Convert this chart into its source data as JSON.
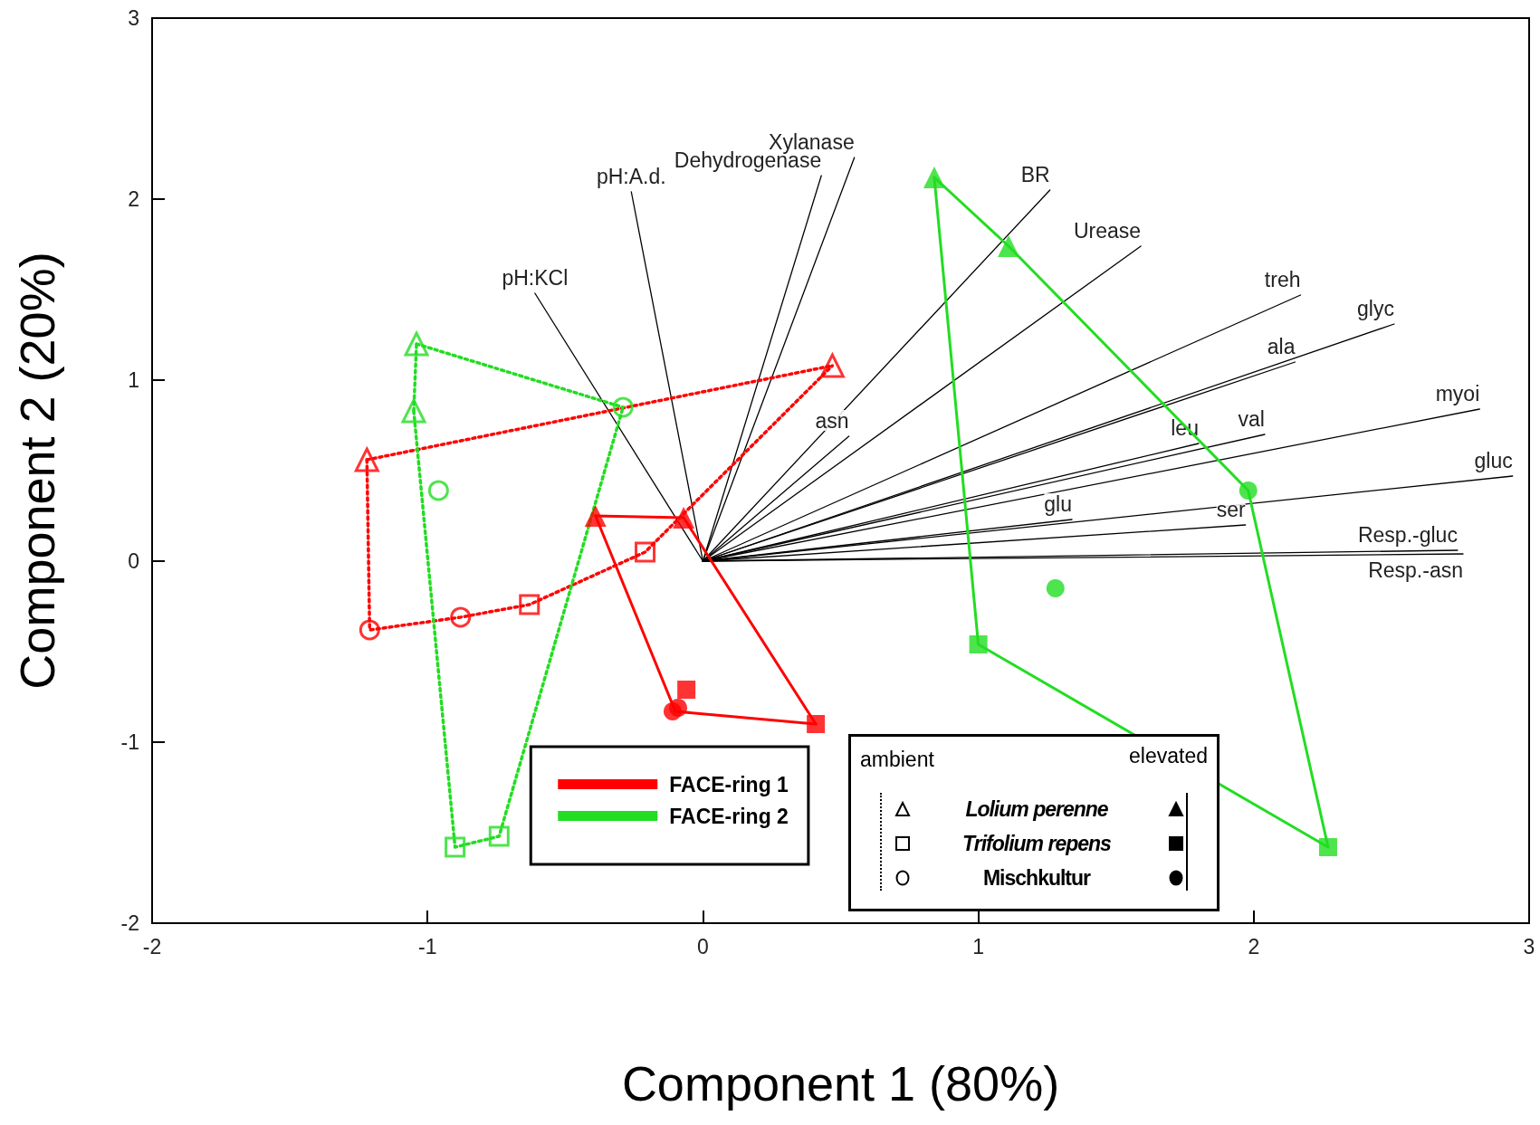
{
  "chart_data": {
    "type": "scatter",
    "xlabel": "Component 1 (80%)",
    "ylabel": "Component 2 (20%)",
    "xlim": [
      -2,
      3
    ],
    "ylim": [
      -2,
      3
    ],
    "xticks": [
      -2,
      -1,
      0,
      1,
      2,
      3
    ],
    "yticks": [
      -2,
      -1,
      0,
      1,
      2,
      3
    ],
    "grid": false,
    "legend": "bottom",
    "annotations": [
      "ambient",
      "elevated",
      "Lolium perenne",
      "Trifolium repens",
      "Mischkultur"
    ],
    "series": [
      {
        "type": "line",
        "name": "pH:A.d.",
        "color": "#000000",
        "x": [
          0,
          -0.26
        ],
        "values": [
          0,
          2.04
        ]
      },
      {
        "type": "line",
        "name": "pH:KCl",
        "color": "#000000",
        "x": [
          0,
          -0.61
        ],
        "values": [
          0,
          1.48
        ]
      },
      {
        "type": "line",
        "name": "Dehydrogenase",
        "color": "#000000",
        "x": [
          0,
          0.43
        ],
        "values": [
          0,
          2.13
        ]
      },
      {
        "type": "line",
        "name": "Xylanase",
        "color": "#000000",
        "x": [
          0,
          0.55
        ],
        "values": [
          0,
          2.23
        ]
      },
      {
        "type": "line",
        "name": "BR",
        "color": "#000000",
        "x": [
          0,
          1.26
        ],
        "values": [
          0,
          2.05
        ]
      },
      {
        "type": "line",
        "name": "Urease",
        "color": "#000000",
        "x": [
          0,
          1.59
        ],
        "values": [
          0,
          1.74
        ]
      },
      {
        "type": "line",
        "name": "treh",
        "color": "#000000",
        "x": [
          0,
          2.17
        ],
        "values": [
          0,
          1.47
        ]
      },
      {
        "type": "line",
        "name": "glyc",
        "color": "#000000",
        "x": [
          0,
          2.51
        ],
        "values": [
          0,
          1.31
        ]
      },
      {
        "type": "line",
        "name": "ala",
        "color": "#000000",
        "x": [
          0,
          2.15
        ],
        "values": [
          0,
          1.1
        ]
      },
      {
        "type": "line",
        "name": "myoi",
        "color": "#000000",
        "x": [
          0,
          2.82
        ],
        "values": [
          0,
          0.84
        ]
      },
      {
        "type": "line",
        "name": "val",
        "color": "#000000",
        "x": [
          0,
          2.04
        ],
        "values": [
          0,
          0.7
        ]
      },
      {
        "type": "line",
        "name": "leu",
        "color": "#000000",
        "x": [
          0,
          1.8
        ],
        "values": [
          0,
          0.65
        ]
      },
      {
        "type": "line",
        "name": "asn",
        "color": "#000000",
        "x": [
          0,
          0.53
        ],
        "values": [
          0,
          0.69
        ]
      },
      {
        "type": "line",
        "name": "gluc",
        "color": "#000000",
        "x": [
          0,
          2.94
        ],
        "values": [
          0,
          0.47
        ]
      },
      {
        "type": "line",
        "name": "glu",
        "color": "#000000",
        "x": [
          0,
          1.34
        ],
        "values": [
          0,
          0.23
        ]
      },
      {
        "type": "line",
        "name": "ser",
        "color": "#000000",
        "x": [
          0,
          1.97
        ],
        "values": [
          0,
          0.2
        ]
      },
      {
        "type": "line",
        "name": "Resp.-gluc",
        "color": "#000000",
        "x": [
          0,
          2.74
        ],
        "values": [
          0,
          0.06
        ]
      },
      {
        "type": "line",
        "name": "Resp.-asn",
        "color": "#000000",
        "x": [
          0,
          2.76
        ],
        "values": [
          0,
          0.04
        ]
      },
      {
        "type": "line",
        "color": "#ff0000",
        "line_style": "dotted",
        "x": [
          -1.22,
          0.47
        ],
        "values": [
          0.56,
          1.08
        ]
      },
      {
        "type": "line",
        "color": "#ff0000",
        "line_style": "dotted",
        "x": [
          -1.22,
          -1.21,
          -0.88,
          -0.63,
          -0.21,
          0.47
        ],
        "values": [
          0.56,
          -0.38,
          -0.31,
          -0.24,
          0.05,
          1.08
        ]
      },
      {
        "type": "line",
        "name": "FACE-ring 1",
        "color": "#ff0000",
        "line_style": "solid",
        "x": [
          -0.39,
          -0.07,
          0.41
        ],
        "values": [
          0.25,
          0.24,
          -0.9
        ]
      },
      {
        "type": "line",
        "color": "#ff0000",
        "line_style": "solid",
        "x": [
          -0.39,
          -0.1,
          0.41
        ],
        "values": [
          0.25,
          -0.83,
          -0.9
        ]
      },
      {
        "type": "line",
        "color": "#22dd22",
        "line_style": "dotted",
        "x": [
          -1.04,
          -0.29
        ],
        "values": [
          1.2,
          0.85
        ]
      },
      {
        "type": "line",
        "color": "#22dd22",
        "line_style": "dotted",
        "x": [
          -1.05,
          -0.9,
          -0.74,
          -0.29
        ],
        "values": [
          0.83,
          -1.58,
          -1.52,
          0.85
        ]
      },
      {
        "type": "line",
        "color": "#22dd22",
        "line_style": "dotted",
        "x": [
          -1.05,
          -1.04
        ],
        "values": [
          0.83,
          1.2
        ]
      },
      {
        "type": "line",
        "name": "FACE-ring 2",
        "color": "#22dd22",
        "line_style": "solid",
        "x": [
          0.84,
          1.11,
          1.98,
          2.27
        ],
        "values": [
          2.12,
          1.74,
          0.39,
          -1.58
        ]
      },
      {
        "type": "line",
        "color": "#22dd22",
        "line_style": "solid",
        "x": [
          0.84,
          1.0,
          2.27
        ],
        "values": [
          2.12,
          -0.46,
          -1.58
        ]
      },
      {
        "color": "#ff0000",
        "marker": "triangle",
        "line_style": "dotted",
        "x": [
          -1.22,
          0.47
        ],
        "values": [
          0.56,
          1.08
        ]
      },
      {
        "color": "#ff0000",
        "marker": "square",
        "line_style": "dotted",
        "x": [
          -0.63,
          -0.21
        ],
        "values": [
          -0.24,
          0.05
        ]
      },
      {
        "color": "#ff0000",
        "marker": "circle",
        "line_style": "dotted",
        "x": [
          -1.21,
          -0.88
        ],
        "values": [
          -0.38,
          -0.31
        ]
      },
      {
        "color": "#ff0000",
        "marker": "triangle",
        "x": [
          -0.39,
          -0.07
        ],
        "values": [
          0.25,
          0.24
        ]
      },
      {
        "color": "#ff0000",
        "marker": "square",
        "x": [
          0.41,
          -0.06
        ],
        "values": [
          -0.9,
          -0.71
        ]
      },
      {
        "color": "#ff0000",
        "marker": "circle",
        "x": [
          -0.11,
          -0.09
        ],
        "values": [
          -0.83,
          -0.81
        ]
      },
      {
        "color": "#22dd22",
        "marker": "triangle",
        "line_style": "dotted",
        "x": [
          -1.04,
          -1.05
        ],
        "values": [
          1.2,
          0.83
        ]
      },
      {
        "color": "#22dd22",
        "marker": "square",
        "line_style": "dotted",
        "x": [
          -0.9,
          -0.74
        ],
        "values": [
          -1.58,
          -1.52
        ]
      },
      {
        "color": "#22dd22",
        "marker": "circle",
        "line_style": "dotted",
        "x": [
          -0.29,
          -0.96
        ],
        "values": [
          0.85,
          0.39
        ]
      },
      {
        "color": "#22dd22",
        "marker": "triangle",
        "x": [
          0.84,
          1.11
        ],
        "values": [
          2.12,
          1.74
        ]
      },
      {
        "color": "#22dd22",
        "marker": "square",
        "x": [
          1.0,
          2.27
        ],
        "values": [
          -0.46,
          -1.58
        ]
      },
      {
        "color": "#22dd22",
        "marker": "circle",
        "x": [
          1.98,
          1.28
        ],
        "values": [
          0.39,
          -0.15
        ]
      }
    ]
  }
}
